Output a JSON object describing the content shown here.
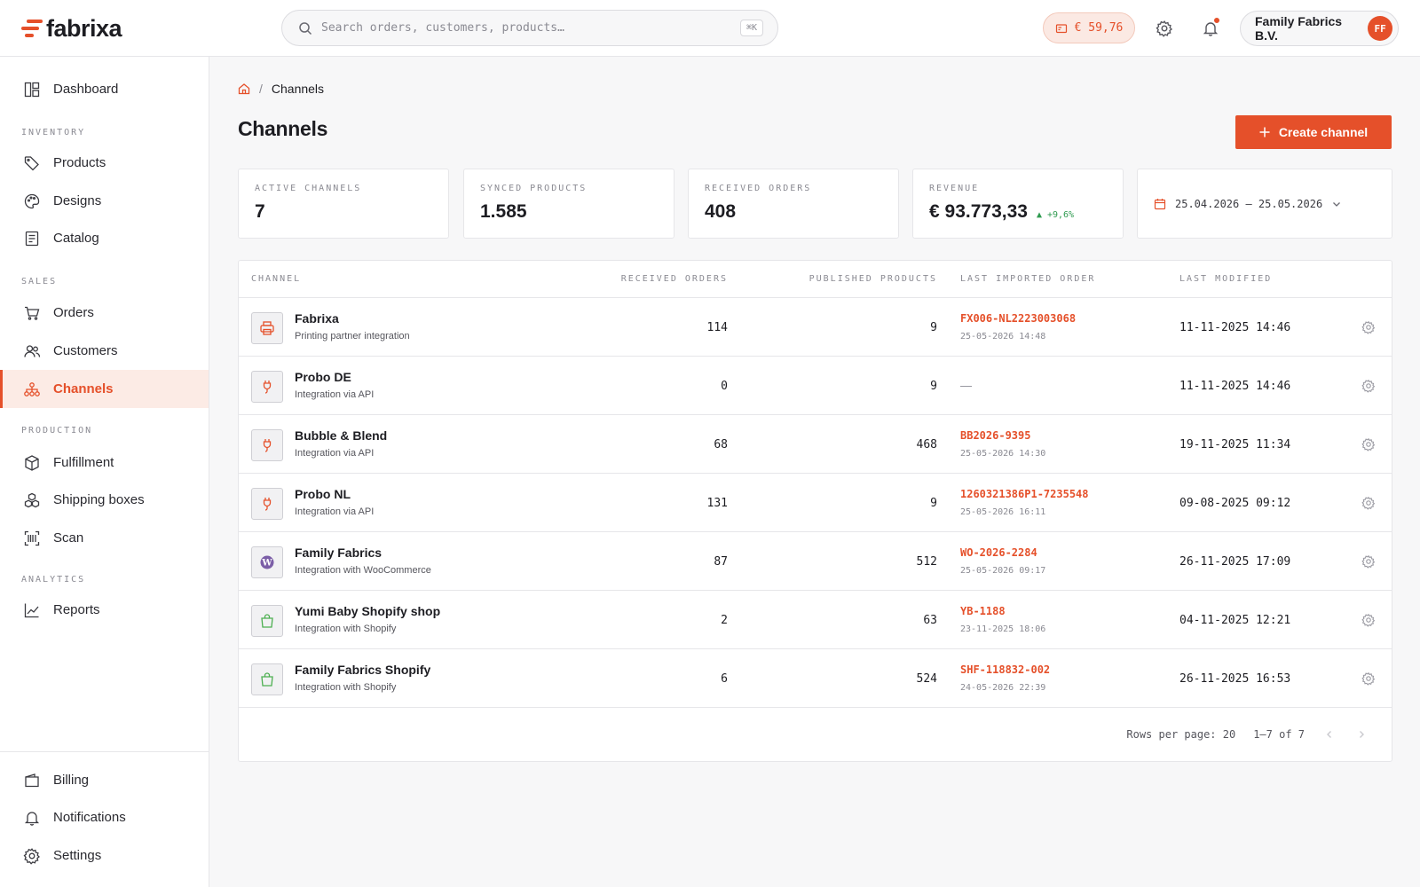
{
  "brand": {
    "name": "fabrixa",
    "accent": "#e5502a"
  },
  "header": {
    "search_placeholder": "Search orders, customers, products…",
    "search_shortcut": "⌘K",
    "balance": "€ 59,76",
    "account_name": "Family Fabrics B.V.",
    "avatar_initials": "FF"
  },
  "sidebar": {
    "dashboard": "Dashboard",
    "sections": {
      "inventory": "INVENTORY",
      "sales": "SALES",
      "production": "PRODUCTION",
      "analytics": "ANALYTICS"
    },
    "items": {
      "products": "Products",
      "designs": "Designs",
      "catalog": "Catalog",
      "orders": "Orders",
      "customers": "Customers",
      "channels": "Channels",
      "fulfillment": "Fulfillment",
      "shipping_boxes": "Shipping boxes",
      "scan": "Scan",
      "reports": "Reports",
      "billing": "Billing",
      "notifications": "Notifications",
      "settings": "Settings"
    },
    "active": "channels"
  },
  "breadcrumb": {
    "separator": "/",
    "current": "Channels"
  },
  "page": {
    "title": "Channels",
    "create_button": "Create channel"
  },
  "stats": [
    {
      "label": "ACTIVE CHANNELS",
      "value": "7"
    },
    {
      "label": "SYNCED PRODUCTS",
      "value": "1.585"
    },
    {
      "label": "RECEIVED ORDERS",
      "value": "408"
    },
    {
      "label": "REVENUE",
      "value": "€ 93.773,33",
      "delta": "▲ +9,6%"
    }
  ],
  "date_range": "25.04.2026 — 25.05.2026",
  "table": {
    "columns": {
      "channel": "CHANNEL",
      "received_orders": "RECEIVED ORDERS",
      "published_products": "PUBLISHED PRODUCTS",
      "last_imported_order": "LAST IMPORTED ORDER",
      "last_modified": "LAST MODIFIED"
    },
    "rows": [
      {
        "icon": "printer-icon",
        "name": "Fabrixa",
        "subtitle": "Printing partner integration",
        "received_orders": "114",
        "published_products": "9",
        "last_order_id": "FX006-NL2223003068",
        "last_order_date": "25-05-2026 14:48",
        "last_modified": "11-11-2025 14:46"
      },
      {
        "icon": "plug-icon",
        "name": "Probo DE",
        "subtitle": "Integration via API",
        "received_orders": "0",
        "published_products": "9",
        "last_order_id": "",
        "last_order_date": "",
        "last_order_empty": "—",
        "last_modified": "11-11-2025 14:46"
      },
      {
        "icon": "plug-icon",
        "name": "Bubble & Blend",
        "subtitle": "Integration via API",
        "received_orders": "68",
        "published_products": "468",
        "last_order_id": "BB2026-9395",
        "last_order_date": "25-05-2026 14:30",
        "last_modified": "19-11-2025 11:34"
      },
      {
        "icon": "plug-icon",
        "name": "Probo NL",
        "subtitle": "Integration via API",
        "received_orders": "131",
        "published_products": "9",
        "last_order_id": "1260321386P1-7235548",
        "last_order_date": "25-05-2026 16:11",
        "last_modified": "09-08-2025 09:12"
      },
      {
        "icon": "wordpress-icon",
        "name": "Family Fabrics",
        "subtitle": "Integration with WooCommerce",
        "received_orders": "87",
        "published_products": "512",
        "last_order_id": "WO-2026-2284",
        "last_order_date": "25-05-2026 09:17",
        "last_modified": "26-11-2025 17:09"
      },
      {
        "icon": "shopping-bag-icon",
        "name": "Yumi Baby Shopify shop",
        "subtitle": "Integration with Shopify",
        "received_orders": "2",
        "published_products": "63",
        "last_order_id": "YB-1188",
        "last_order_date": "23-11-2025 18:06",
        "last_modified": "04-11-2025 12:21"
      },
      {
        "icon": "shopping-bag-icon",
        "name": "Family Fabrics Shopify",
        "subtitle": "Integration with Shopify",
        "received_orders": "6",
        "published_products": "524",
        "last_order_id": "SHF-118832-002",
        "last_order_date": "24-05-2026 22:39",
        "last_modified": "26-11-2025 16:53"
      }
    ],
    "pagination": {
      "rows_per_page": "Rows per page: 20",
      "range": "1–7 of 7"
    }
  }
}
